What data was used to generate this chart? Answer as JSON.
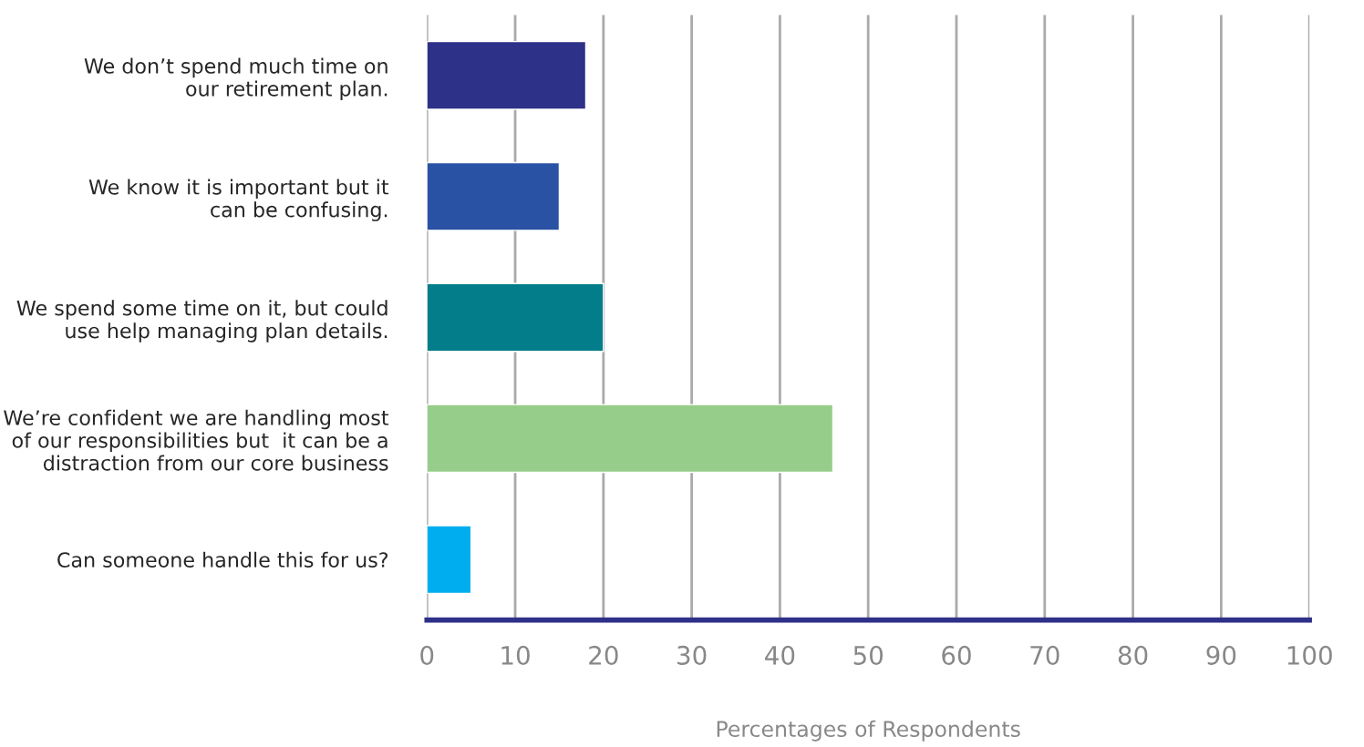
{
  "chart_data": {
    "type": "bar",
    "orientation": "horizontal",
    "categories": [
      "We don’t spend much time on\nour retirement plan.",
      "We know it is important but it\ncan be confusing.",
      "We spend some time on it, but could\nuse help managing plan details.",
      "We’re confident we are handling most\nof our responsibilities but  it can be a\ndistraction from our core business",
      "Can someone handle this for us?"
    ],
    "values": [
      18,
      15,
      20,
      46,
      5
    ],
    "colors": [
      "#2e3188",
      "#2a52a4",
      "#037d8a",
      "#97cd8a",
      "#00aeef"
    ],
    "xlim": [
      0,
      100
    ],
    "xticks": [
      0,
      10,
      20,
      30,
      40,
      50,
      60,
      70,
      80,
      90,
      100
    ],
    "xlabel": "Percentages of Respondents",
    "grid": "x"
  }
}
